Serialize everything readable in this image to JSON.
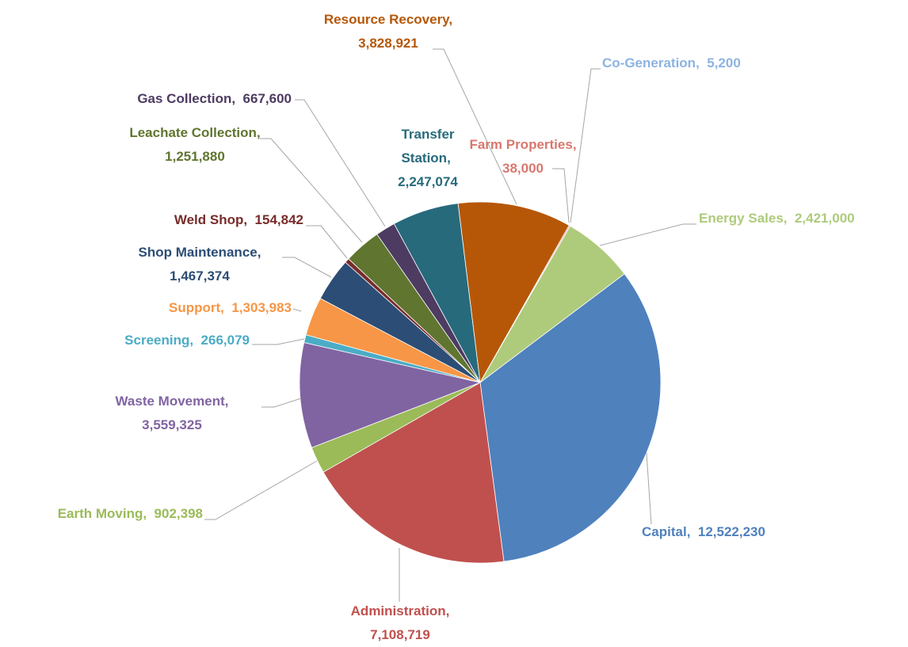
{
  "chart_data": {
    "type": "pie",
    "start_angle": 53,
    "separator": ",",
    "categories": [
      "Capital",
      "Administration",
      "Earth Moving",
      "Waste Movement",
      "Screening",
      "Support",
      "Shop Maintenance",
      "Weld Shop",
      "Leachate Collection",
      "Gas Collection",
      "Transfer Station",
      "Resource Recovery",
      "Farm Properties",
      "Co-Generation",
      "Energy Sales"
    ],
    "values": [
      12522230,
      7108719,
      902398,
      3559325,
      266079,
      1303983,
      1467374,
      154842,
      1251880,
      667600,
      2247074,
      3828921,
      38000,
      5200,
      2421000
    ],
    "value_labels": [
      "12,522,230",
      "7,108,719",
      "902,398",
      "3,559,325",
      "266,079",
      "1,303,983",
      "1,467,374",
      "154,842",
      "1,251,880",
      "667,600",
      "2,247,074",
      "3,828,921",
      "38,000",
      "5,200",
      "2,421,000"
    ],
    "colors": [
      "#4f81bd",
      "#c0504d",
      "#9bbb59",
      "#8064a2",
      "#4bacc6",
      "#f79646",
      "#2c4d75",
      "#772c2a",
      "#5f7530",
      "#4d3b62",
      "#276a7c",
      "#b65708",
      "#d9776e",
      "#8db3e2",
      "#aecb7b"
    ]
  }
}
